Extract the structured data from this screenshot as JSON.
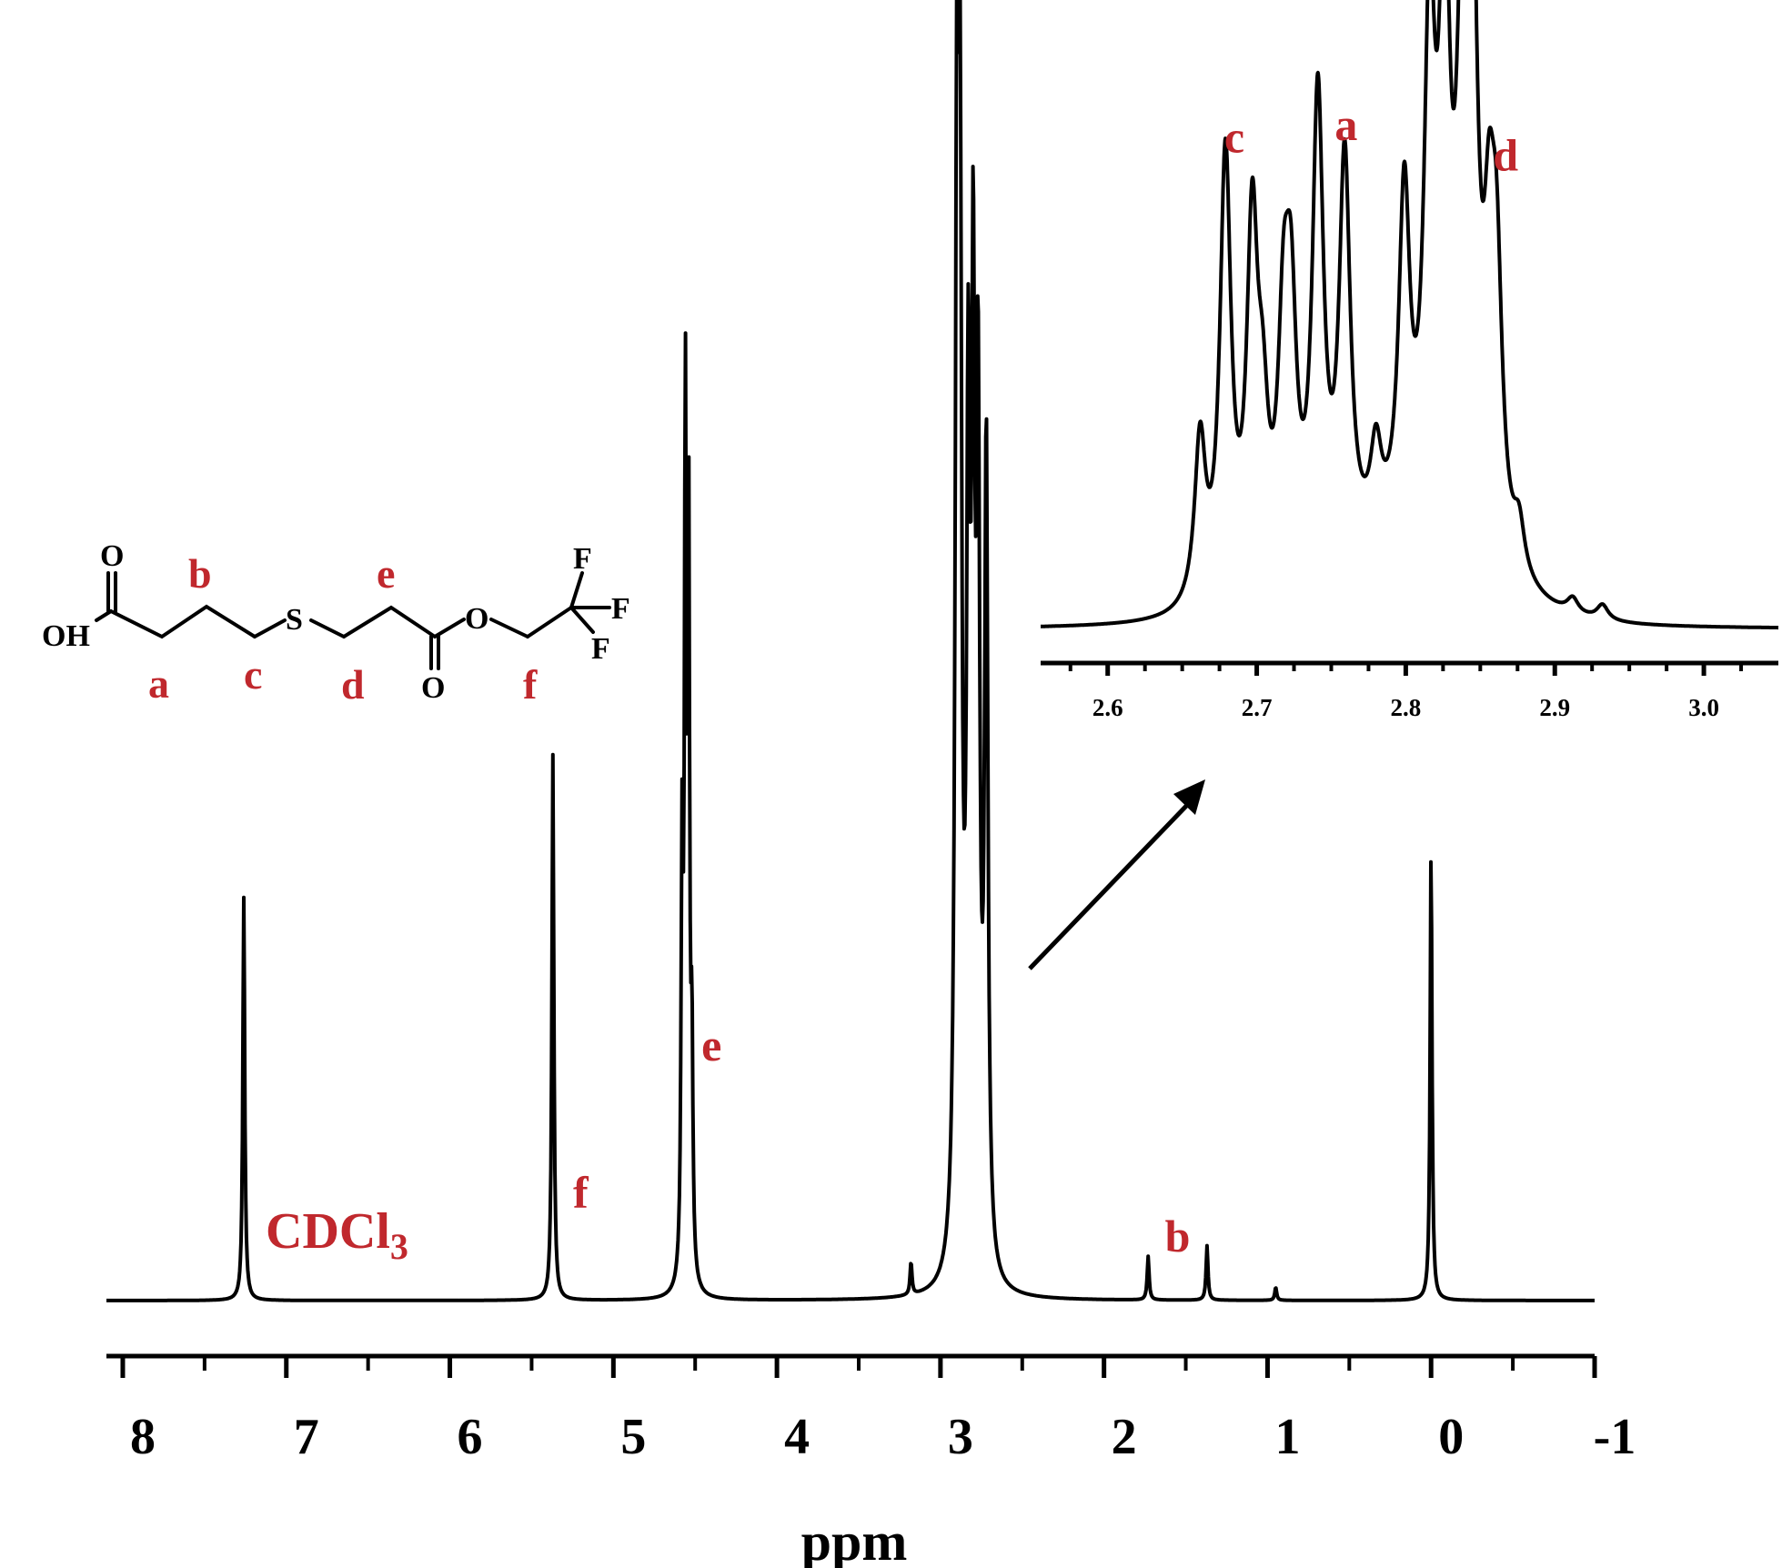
{
  "chart_data": [
    {
      "type": "line",
      "xlabel": "ppm",
      "ylabel": "",
      "xlim": [
        8.1,
        -1
      ],
      "x_reversed": true,
      "x_ticks": [
        "8",
        "7",
        "6",
        "5",
        "4",
        "3",
        "2",
        "1",
        "0",
        "-1"
      ],
      "solvent_label": "CDCl",
      "solvent_subscript": "3",
      "peaks": [
        {
          "shift": 7.26,
          "height": 0.37,
          "label": ""
        },
        {
          "shift": 5.37,
          "height": 0.5,
          "label": "f"
        },
        {
          "shift": 4.58,
          "height": 0.37,
          "label": ""
        },
        {
          "shift": 4.56,
          "height": 0.77,
          "label": ""
        },
        {
          "shift": 4.54,
          "height": 0.69,
          "label": "e"
        },
        {
          "shift": 4.52,
          "height": 0.2,
          "label": ""
        },
        {
          "shift": 3.18,
          "height": 0.03,
          "label": ""
        },
        {
          "shift": 2.9,
          "height": 0.95,
          "label": ""
        },
        {
          "shift": 2.88,
          "height": 0.87,
          "label": ""
        },
        {
          "shift": 2.83,
          "height": 0.69,
          "label": ""
        },
        {
          "shift": 2.8,
          "height": 0.78,
          "label": ""
        },
        {
          "shift": 2.77,
          "height": 0.72,
          "label": ""
        },
        {
          "shift": 2.72,
          "height": 0.74,
          "label": ""
        },
        {
          "shift": 1.73,
          "height": 0.04,
          "label": ""
        },
        {
          "shift": 1.37,
          "height": 0.05,
          "label": "b"
        },
        {
          "shift": 0.95,
          "height": 0.012,
          "label": ""
        },
        {
          "shift": 0.0,
          "height": 0.41,
          "label": ""
        }
      ]
    },
    {
      "type": "line",
      "name": "inset",
      "xlim": [
        2.555,
        3.05
      ],
      "x_ticks": [
        "2.6",
        "2.7",
        "2.8",
        "2.9",
        "3.0"
      ],
      "peaks": [
        {
          "shift": 2.662,
          "height": 0.27,
          "label": ""
        },
        {
          "shift": 2.679,
          "height": 0.73,
          "label": "c"
        },
        {
          "shift": 2.697,
          "height": 0.58,
          "label": ""
        },
        {
          "shift": 2.704,
          "height": 0.22,
          "label": ""
        },
        {
          "shift": 2.718,
          "height": 0.36,
          "label": ""
        },
        {
          "shift": 2.723,
          "height": 0.38,
          "label": ""
        },
        {
          "shift": 2.741,
          "height": 0.77,
          "label": "a"
        },
        {
          "shift": 2.759,
          "height": 0.65,
          "label": ""
        },
        {
          "shift": 2.78,
          "height": 0.14,
          "label": ""
        },
        {
          "shift": 2.799,
          "height": 0.55,
          "label": ""
        },
        {
          "shift": 2.816,
          "height": 0.79,
          "label": ""
        },
        {
          "shift": 2.826,
          "height": 0.87,
          "label": ""
        },
        {
          "shift": 2.838,
          "height": 0.68,
          "label": "d"
        },
        {
          "shift": 2.844,
          "height": 1.0,
          "label": ""
        },
        {
          "shift": 2.856,
          "height": 0.39,
          "label": ""
        },
        {
          "shift": 2.861,
          "height": 0.4,
          "label": ""
        },
        {
          "shift": 2.876,
          "height": 0.08,
          "label": ""
        },
        {
          "shift": 2.912,
          "height": 0.025,
          "label": ""
        },
        {
          "shift": 2.932,
          "height": 0.025,
          "label": ""
        }
      ]
    }
  ],
  "structure": {
    "atoms": {
      "carbonyl_o1": "O",
      "oh": "OH",
      "s": "S",
      "carbonyl_o2": "O",
      "ester_o": "O",
      "f1": "F",
      "f2": "F",
      "f3": "F"
    },
    "labels": [
      "a",
      "b",
      "c",
      "d",
      "e",
      "f"
    ]
  },
  "colors": {
    "label_red": "#c0282d",
    "line": "#000000"
  }
}
